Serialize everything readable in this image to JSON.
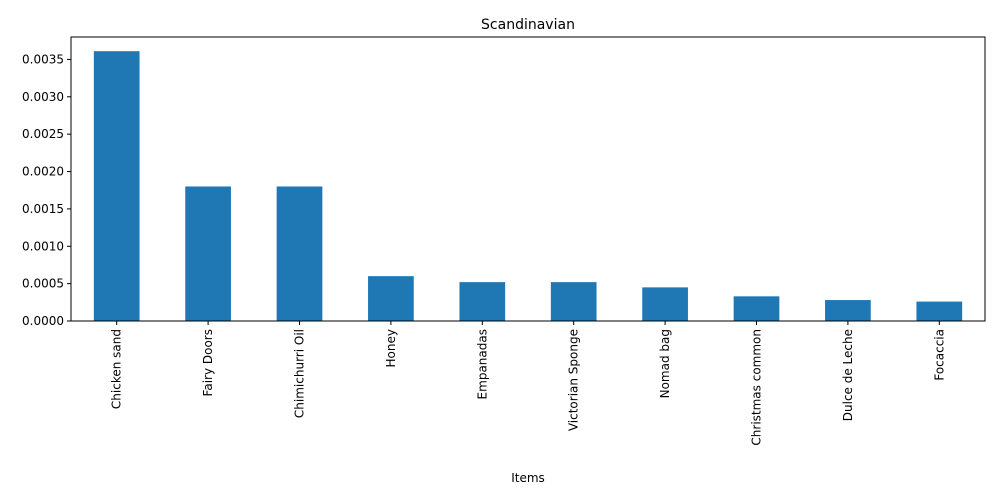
{
  "chart_data": {
    "type": "bar",
    "title": "Scandinavian",
    "xlabel": "Items",
    "ylabel": "",
    "categories": [
      "Chicken sand",
      "Fairy Doors",
      "Chimichurri Oil",
      "Honey",
      "Empanadas",
      "Victorian Sponge",
      "Nomad bag",
      "Christmas common",
      "Dulce de Leche",
      "Focaccia"
    ],
    "values": [
      0.00361,
      0.0018,
      0.0018,
      0.0006,
      0.00052,
      0.00052,
      0.00045,
      0.00033,
      0.00028,
      0.00026
    ],
    "ylim": [
      0,
      0.0038
    ],
    "yticks": [
      0.0,
      0.0005,
      0.001,
      0.0015,
      0.002,
      0.0025,
      0.003,
      0.0035
    ],
    "ytick_labels": [
      "0.0000",
      "0.0005",
      "0.0010",
      "0.0015",
      "0.0020",
      "0.0025",
      "0.0030",
      "0.0035"
    ],
    "grid": false,
    "legend": "none",
    "bar_color": "#1f77b4"
  }
}
